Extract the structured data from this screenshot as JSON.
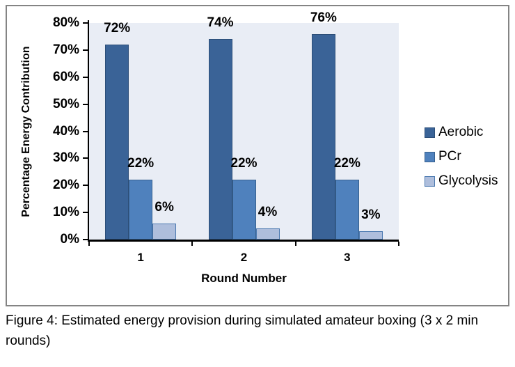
{
  "figure": {
    "caption": "Figure 4: Estimated energy provision during simulated amateur boxing (3 x 2 min rounds)"
  },
  "chart_data": {
    "type": "bar",
    "title": "",
    "xlabel": "Round Number",
    "ylabel": "Percentage Energy Contribution",
    "categories": [
      "1",
      "2",
      "3"
    ],
    "series": [
      {
        "name": "Aerobic",
        "values": [
          72,
          74,
          76
        ],
        "data_labels": [
          "72%",
          "74%",
          "76%"
        ],
        "fill": "#3A6397",
        "border": "#2C4E78"
      },
      {
        "name": "PCr",
        "values": [
          22,
          22,
          22
        ],
        "data_labels": [
          "22%",
          "22%",
          "22%"
        ],
        "fill": "#4F81BD",
        "border": "#37618F"
      },
      {
        "name": "Glycolysis",
        "values": [
          6,
          4,
          3
        ],
        "data_labels": [
          "6%",
          "4%",
          "3%"
        ],
        "fill": "#AEBEDC",
        "border": "#4B79B0"
      }
    ],
    "ylim": [
      0,
      80
    ],
    "ytick_step": 10,
    "ytick_labels": [
      "0%",
      "10%",
      "20%",
      "30%",
      "40%",
      "50%",
      "60%",
      "70%",
      "80%"
    ],
    "grid": false,
    "legend_position": "right",
    "plot_bg": "#E9EDF5",
    "axis_color": "#000000",
    "frame_border_color": "#848484"
  }
}
